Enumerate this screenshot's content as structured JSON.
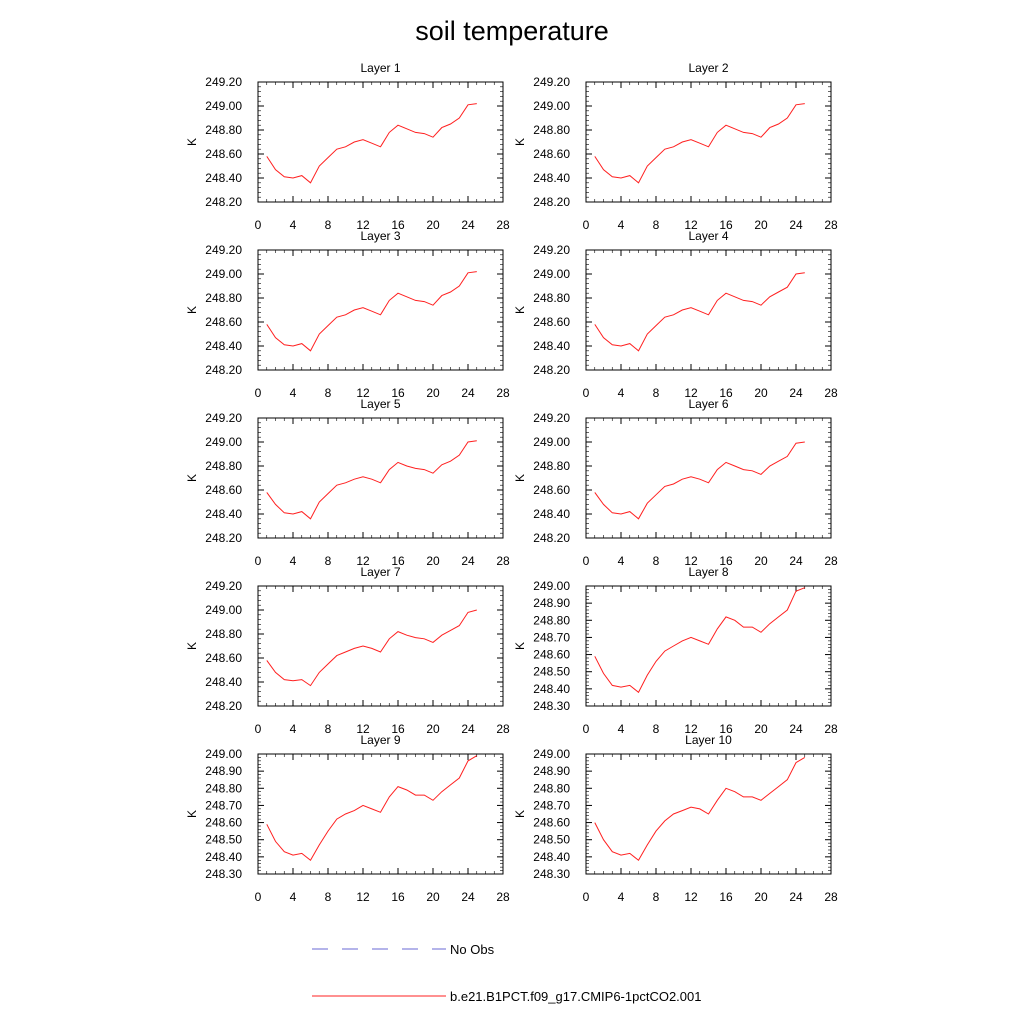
{
  "chart_data": {
    "type": "line",
    "title": "soil temperature",
    "ylabel": "K",
    "x_ticks": [
      0,
      4,
      8,
      12,
      16,
      20,
      24,
      28
    ],
    "xlim": [
      0,
      28
    ],
    "legend": [
      {
        "name": "No Obs",
        "color": "#6a6ad6",
        "style": "dashed"
      },
      {
        "name": "b.e21.B1PCT.f09_g17.CMIP6-1pctCO2.001",
        "color": "#ff2020",
        "style": "solid"
      }
    ],
    "x": [
      1,
      2,
      3,
      4,
      5,
      6,
      7,
      8,
      9,
      10,
      11,
      12,
      13,
      14,
      15,
      16,
      17,
      18,
      19,
      20,
      21,
      22,
      23,
      24,
      25
    ],
    "panels": [
      {
        "title": "Layer 1",
        "ylim": [
          248.2,
          249.2
        ],
        "y_ticks": [
          "248.20",
          "248.40",
          "248.60",
          "248.80",
          "249.00",
          "249.20"
        ],
        "series": [
          {
            "name": "b.e21.B1PCT.f09_g17.CMIP6-1pctCO2.001",
            "values": [
              248.58,
              248.47,
              248.41,
              248.4,
              248.42,
              248.36,
              248.5,
              248.57,
              248.64,
              248.66,
              248.7,
              248.72,
              248.69,
              248.66,
              248.78,
              248.84,
              248.81,
              248.78,
              248.77,
              248.74,
              248.82,
              248.85,
              248.9,
              249.01,
              249.02
            ]
          }
        ]
      },
      {
        "title": "Layer 2",
        "ylim": [
          248.2,
          249.2
        ],
        "y_ticks": [
          "248.20",
          "248.40",
          "248.60",
          "248.80",
          "249.00",
          "249.20"
        ],
        "series": [
          {
            "name": "b.e21.B1PCT.f09_g17.CMIP6-1pctCO2.001",
            "values": [
              248.58,
              248.47,
              248.41,
              248.4,
              248.42,
              248.36,
              248.5,
              248.57,
              248.64,
              248.66,
              248.7,
              248.72,
              248.69,
              248.66,
              248.78,
              248.84,
              248.81,
              248.78,
              248.77,
              248.74,
              248.82,
              248.85,
              248.9,
              249.01,
              249.02
            ]
          }
        ]
      },
      {
        "title": "Layer 3",
        "ylim": [
          248.2,
          249.2
        ],
        "y_ticks": [
          "248.20",
          "248.40",
          "248.60",
          "248.80",
          "249.00",
          "249.20"
        ],
        "series": [
          {
            "name": "b.e21.B1PCT.f09_g17.CMIP6-1pctCO2.001",
            "values": [
              248.58,
              248.47,
              248.41,
              248.4,
              248.42,
              248.36,
              248.5,
              248.57,
              248.64,
              248.66,
              248.7,
              248.72,
              248.69,
              248.66,
              248.78,
              248.84,
              248.81,
              248.78,
              248.77,
              248.74,
              248.82,
              248.85,
              248.9,
              249.01,
              249.02
            ]
          }
        ]
      },
      {
        "title": "Layer 4",
        "ylim": [
          248.2,
          249.2
        ],
        "y_ticks": [
          "248.20",
          "248.40",
          "248.60",
          "248.80",
          "249.00",
          "249.20"
        ],
        "series": [
          {
            "name": "b.e21.B1PCT.f09_g17.CMIP6-1pctCO2.001",
            "values": [
              248.58,
              248.47,
              248.41,
              248.4,
              248.42,
              248.36,
              248.5,
              248.57,
              248.64,
              248.66,
              248.7,
              248.72,
              248.69,
              248.66,
              248.78,
              248.84,
              248.81,
              248.78,
              248.77,
              248.74,
              248.81,
              248.85,
              248.89,
              249.0,
              249.01
            ]
          }
        ]
      },
      {
        "title": "Layer 5",
        "ylim": [
          248.2,
          249.2
        ],
        "y_ticks": [
          "248.20",
          "248.40",
          "248.60",
          "248.80",
          "249.00",
          "249.20"
        ],
        "series": [
          {
            "name": "b.e21.B1PCT.f09_g17.CMIP6-1pctCO2.001",
            "values": [
              248.58,
              248.48,
              248.41,
              248.4,
              248.42,
              248.36,
              248.5,
              248.57,
              248.64,
              248.66,
              248.69,
              248.71,
              248.69,
              248.66,
              248.77,
              248.83,
              248.8,
              248.78,
              248.77,
              248.74,
              248.81,
              248.84,
              248.89,
              249.0,
              249.01
            ]
          }
        ]
      },
      {
        "title": "Layer 6",
        "ylim": [
          248.2,
          249.2
        ],
        "y_ticks": [
          "248.20",
          "248.40",
          "248.60",
          "248.80",
          "249.00",
          "249.20"
        ],
        "series": [
          {
            "name": "b.e21.B1PCT.f09_g17.CMIP6-1pctCO2.001",
            "values": [
              248.58,
              248.48,
              248.41,
              248.4,
              248.42,
              248.36,
              248.49,
              248.56,
              248.63,
              248.65,
              248.69,
              248.71,
              248.69,
              248.66,
              248.77,
              248.83,
              248.8,
              248.77,
              248.76,
              248.73,
              248.8,
              248.84,
              248.88,
              248.99,
              249.0
            ]
          }
        ]
      },
      {
        "title": "Layer 7",
        "ylim": [
          248.2,
          249.2
        ],
        "y_ticks": [
          "248.20",
          "248.40",
          "248.60",
          "248.80",
          "249.00",
          "249.20"
        ],
        "series": [
          {
            "name": "b.e21.B1PCT.f09_g17.CMIP6-1pctCO2.001",
            "values": [
              248.58,
              248.48,
              248.42,
              248.41,
              248.42,
              248.37,
              248.48,
              248.55,
              248.62,
              248.65,
              248.68,
              248.7,
              248.68,
              248.65,
              248.76,
              248.82,
              248.79,
              248.77,
              248.76,
              248.73,
              248.79,
              248.83,
              248.87,
              248.98,
              249.0
            ]
          }
        ]
      },
      {
        "title": "Layer 8",
        "ylim": [
          248.3,
          249.0
        ],
        "y_ticks": [
          "248.30",
          "248.40",
          "248.50",
          "248.60",
          "248.70",
          "248.80",
          "248.90",
          "249.00"
        ],
        "series": [
          {
            "name": "b.e21.B1PCT.f09_g17.CMIP6-1pctCO2.001",
            "values": [
              248.59,
              248.49,
              248.42,
              248.41,
              248.42,
              248.38,
              248.48,
              248.56,
              248.62,
              248.65,
              248.68,
              248.7,
              248.68,
              248.66,
              248.75,
              248.82,
              248.8,
              248.76,
              248.76,
              248.73,
              248.78,
              248.82,
              248.86,
              248.97,
              248.99
            ]
          }
        ]
      },
      {
        "title": "Layer 9",
        "ylim": [
          248.3,
          249.0
        ],
        "y_ticks": [
          "248.30",
          "248.40",
          "248.50",
          "248.60",
          "248.70",
          "248.80",
          "248.90",
          "249.00"
        ],
        "series": [
          {
            "name": "b.e21.B1PCT.f09_g17.CMIP6-1pctCO2.001",
            "values": [
              248.59,
              248.49,
              248.43,
              248.41,
              248.42,
              248.38,
              248.47,
              248.55,
              248.62,
              248.65,
              248.67,
              248.7,
              248.68,
              248.66,
              248.75,
              248.81,
              248.79,
              248.76,
              248.76,
              248.73,
              248.78,
              248.82,
              248.86,
              248.96,
              248.99
            ]
          }
        ]
      },
      {
        "title": "Layer 10",
        "ylim": [
          248.3,
          249.0
        ],
        "y_ticks": [
          "248.30",
          "248.40",
          "248.50",
          "248.60",
          "248.70",
          "248.80",
          "248.90",
          "249.00"
        ],
        "series": [
          {
            "name": "b.e21.B1PCT.f09_g17.CMIP6-1pctCO2.001",
            "values": [
              248.6,
              248.5,
              248.43,
              248.41,
              248.42,
              248.38,
              248.47,
              248.55,
              248.61,
              248.65,
              248.67,
              248.69,
              248.68,
              248.65,
              248.73,
              248.8,
              248.78,
              248.75,
              248.75,
              248.73,
              248.77,
              248.81,
              248.85,
              248.95,
              248.98
            ]
          }
        ]
      }
    ]
  }
}
